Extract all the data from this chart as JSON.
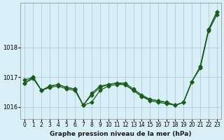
{
  "x": [
    0,
    1,
    2,
    3,
    4,
    5,
    6,
    7,
    8,
    9,
    10,
    11,
    12,
    13,
    14,
    15,
    16,
    17,
    18,
    19,
    20,
    21,
    22,
    23
  ],
  "line1": [
    1016.8,
    1016.95,
    1016.55,
    1016.65,
    1016.7,
    1016.6,
    1016.55,
    1016.05,
    1016.15,
    1016.55,
    1016.7,
    1016.75,
    1016.75,
    1016.55,
    1016.35,
    1016.2,
    1016.15,
    1016.1,
    1016.05,
    1016.15,
    1016.85,
    1017.3,
    1018.55,
    1019.1
  ],
  "line2": [
    1016.8,
    1017.0,
    1016.55,
    1016.7,
    1016.75,
    1016.65,
    1016.6,
    1016.05,
    1016.4,
    1016.65,
    1016.75,
    1016.8,
    1016.8,
    1016.6,
    1016.4,
    1016.25,
    1016.2,
    1016.15,
    1016.05,
    1016.15,
    1016.85,
    1017.35,
    1018.6,
    1019.2
  ],
  "line3": [
    1016.9,
    1017.0,
    1016.55,
    1016.7,
    1016.75,
    1016.65,
    1016.6,
    1016.05,
    1016.45,
    1016.7,
    1016.75,
    1016.8,
    1016.75,
    1016.55,
    1016.35,
    1016.25,
    1016.2,
    1016.15,
    1016.05,
    1016.15,
    1016.85,
    1017.35,
    1018.6,
    1019.2
  ],
  "background_color": "#d8eff8",
  "grid_color": "#a8c8d8",
  "line_color": "#1a5c1a",
  "title": "Graphe pression niveau de la mer (hPa)",
  "ylim_min": 1015.6,
  "ylim_max": 1019.5,
  "yticks": [
    1016,
    1017,
    1018
  ],
  "xtick_labels": [
    "0",
    "1",
    "2",
    "3",
    "4",
    "5",
    "6",
    "7",
    "8",
    "9",
    "10",
    "11",
    "12",
    "13",
    "14",
    "15",
    "16",
    "17",
    "18",
    "19",
    "20",
    "21",
    "22",
    "23"
  ]
}
